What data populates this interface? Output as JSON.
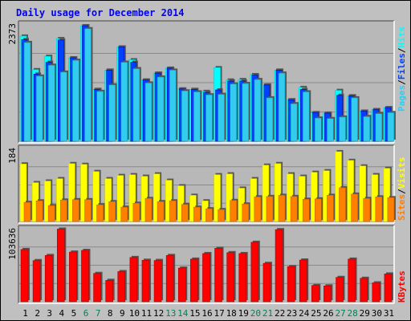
{
  "chart_data": [
    {
      "type": "bar",
      "title": "Daily usage for December 2014",
      "ylabel_parts": [
        "Pages",
        "Files",
        "Hits"
      ],
      "ymax_label": "2373",
      "ylim": [
        0,
        2373
      ],
      "categories": [
        "1",
        "2",
        "3",
        "4",
        "5",
        "6",
        "7",
        "8",
        "9",
        "10",
        "11",
        "12",
        "13",
        "14",
        "15",
        "16",
        "17",
        "18",
        "19",
        "20",
        "21",
        "22",
        "23",
        "24",
        "25",
        "26",
        "27",
        "28",
        "29",
        "30",
        "31"
      ],
      "weekend_days": [
        "6",
        "7",
        "13",
        "14",
        "20",
        "21",
        "27",
        "28"
      ],
      "series": [
        {
          "name": "Hits",
          "values": [
            2130,
            1450,
            1720,
            2080,
            1690,
            2340,
            1050,
            1440,
            1910,
            1650,
            1240,
            1380,
            1480,
            1060,
            1050,
            1010,
            1490,
            1240,
            1250,
            1350,
            1140,
            1440,
            840,
            1090,
            580,
            570,
            1030,
            920,
            610,
            640,
            680
          ]
        },
        {
          "name": "Files",
          "values": [
            2060,
            1360,
            1600,
            2050,
            1690,
            2340,
            1050,
            1440,
            1910,
            1600,
            1240,
            1380,
            1480,
            1060,
            1050,
            990,
            1040,
            1220,
            1220,
            1340,
            1140,
            1440,
            840,
            1050,
            580,
            570,
            930,
            920,
            610,
            640,
            680
          ]
        },
        {
          "name": "Pages",
          "values": [
            2000,
            1320,
            1540,
            1400,
            1640,
            2280,
            1010,
            1140,
            1600,
            1470,
            1180,
            1300,
            1440,
            1020,
            1000,
            940,
            950,
            1160,
            1170,
            1250,
            880,
            1380,
            760,
            1000,
            470,
            460,
            490,
            880,
            500,
            560,
            580
          ]
        }
      ]
    },
    {
      "type": "bar",
      "ylabel_parts": [
        "Sites",
        "Visits"
      ],
      "ymax_label": "184",
      "ylim": [
        0,
        184
      ],
      "categories": [
        "1",
        "2",
        "3",
        "4",
        "5",
        "6",
        "7",
        "8",
        "9",
        "10",
        "11",
        "12",
        "13",
        "14",
        "15",
        "16",
        "17",
        "18",
        "19",
        "20",
        "21",
        "22",
        "23",
        "24",
        "25",
        "26",
        "27",
        "28",
        "29",
        "30",
        "31"
      ],
      "series": [
        {
          "name": "Visits",
          "values": [
            145,
            98,
            102,
            108,
            146,
            144,
            126,
            108,
            116,
            118,
            114,
            120,
            104,
            90,
            66,
            52,
            118,
            120,
            84,
            108,
            142,
            146,
            120,
            114,
            124,
            128,
            176,
            154,
            140,
            118,
            134
          ]
        },
        {
          "name": "Sites",
          "values": [
            48,
            52,
            40,
            54,
            55,
            55,
            42,
            50,
            36,
            46,
            58,
            50,
            52,
            43,
            36,
            32,
            30,
            53,
            44,
            62,
            63,
            66,
            63,
            56,
            57,
            66,
            85,
            69,
            58,
            62,
            60
          ]
        }
      ]
    },
    {
      "type": "bar",
      "ylabel_parts": [
        "KBytes"
      ],
      "ymax_label": "103636",
      "ylim": [
        0,
        103636
      ],
      "categories": [
        "1",
        "2",
        "3",
        "4",
        "5",
        "6",
        "7",
        "8",
        "9",
        "10",
        "11",
        "12",
        "13",
        "14",
        "15",
        "16",
        "17",
        "18",
        "19",
        "20",
        "21",
        "22",
        "23",
        "24",
        "25",
        "26",
        "27",
        "28",
        "29",
        "30",
        "31"
      ],
      "series": [
        {
          "name": "KBytes",
          "values": [
            74200,
            58400,
            65700,
            103100,
            70500,
            72900,
            40200,
            30400,
            42800,
            62800,
            58900,
            58600,
            65700,
            47800,
            60500,
            68400,
            75800,
            69700,
            68400,
            84400,
            54500,
            102300,
            49900,
            59200,
            23100,
            22500,
            34500,
            60500,
            33300,
            26800,
            39400
          ]
        }
      ]
    }
  ],
  "colors": {
    "hits": "#00ffff",
    "hits_edge": "#00cccc",
    "files": "#0040ff",
    "files_edge": "#0000aa",
    "pages": "#33ccee",
    "pages_edge": "#0099bb",
    "visits": "#ffff00",
    "visits_edge": "#cccc00",
    "sites": "#ff8000",
    "sites_edge": "#cc6600",
    "kbytes": "#ff0000",
    "kbytes_edge": "#aa0000",
    "weekday_label": "#000000",
    "weekend_label": "#00805a",
    "panel_bg": "#b8b8b8",
    "grid": "#8a8a8a",
    "shadow": "#555555"
  }
}
